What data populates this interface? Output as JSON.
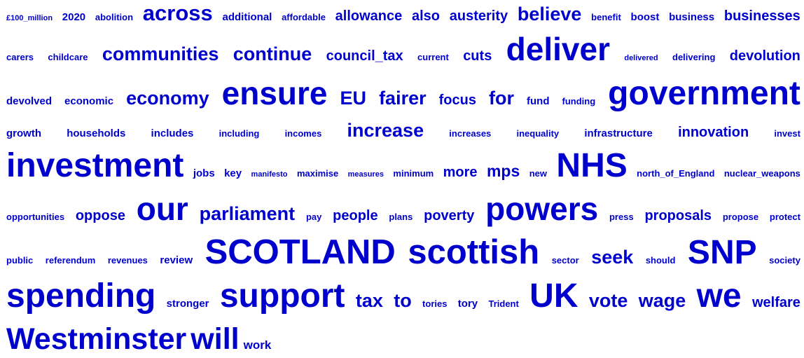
{
  "rows": [
    [
      {
        "text": "£100_million",
        "size": 1
      },
      {
        "text": "2020",
        "size": 3
      },
      {
        "text": "abolition",
        "size": 2
      },
      {
        "text": "across",
        "size": 8
      },
      {
        "text": "additional",
        "size": 3
      },
      {
        "text": "affordable",
        "size": 2
      },
      {
        "text": "allowance",
        "size": 5
      },
      {
        "text": "also",
        "size": 5
      },
      {
        "text": "austerity",
        "size": 5
      },
      {
        "text": "believe",
        "size": 7
      },
      {
        "text": "benefit",
        "size": 2
      },
      {
        "text": "boost",
        "size": 3
      },
      {
        "text": "business",
        "size": 3
      },
      {
        "text": "businesses",
        "size": 5
      }
    ],
    [
      {
        "text": "carers",
        "size": 2
      },
      {
        "text": "childcare",
        "size": 2
      },
      {
        "text": "communities",
        "size": 7
      },
      {
        "text": "continue",
        "size": 7
      },
      {
        "text": "council_tax",
        "size": 5
      },
      {
        "text": "current",
        "size": 2
      },
      {
        "text": "cuts",
        "size": 5
      },
      {
        "text": "deliver",
        "size": 11
      },
      {
        "text": "delivered",
        "size": 1
      },
      {
        "text": "delivering",
        "size": 2
      },
      {
        "text": "devolution",
        "size": 5
      }
    ],
    [
      {
        "text": "devolved",
        "size": 3
      },
      {
        "text": "economic",
        "size": 3
      },
      {
        "text": "economy",
        "size": 7
      },
      {
        "text": "ensure",
        "size": 11
      },
      {
        "text": "EU",
        "size": 7
      },
      {
        "text": "fairer",
        "size": 7
      },
      {
        "text": "focus",
        "size": 5
      },
      {
        "text": "for",
        "size": 7
      },
      {
        "text": "fund",
        "size": 3
      },
      {
        "text": "funding",
        "size": 2
      },
      {
        "text": "government",
        "size": 12
      }
    ],
    [
      {
        "text": "growth",
        "size": 3
      },
      {
        "text": "households",
        "size": 3
      },
      {
        "text": "includes",
        "size": 3
      },
      {
        "text": "including",
        "size": 2
      },
      {
        "text": "incomes",
        "size": 2
      },
      {
        "text": "increase",
        "size": 7
      },
      {
        "text": "increases",
        "size": 2
      },
      {
        "text": "inequality",
        "size": 2
      },
      {
        "text": "infrastructure",
        "size": 3
      },
      {
        "text": "innovation",
        "size": 5
      },
      {
        "text": "invest",
        "size": 2
      }
    ],
    [
      {
        "text": "investment",
        "size": 12
      },
      {
        "text": "jobs",
        "size": 3
      },
      {
        "text": "key",
        "size": 3
      },
      {
        "text": "manifesto",
        "size": 1
      },
      {
        "text": "maximise",
        "size": 2
      },
      {
        "text": "measures",
        "size": 1
      },
      {
        "text": "minimum",
        "size": 2
      },
      {
        "text": "more",
        "size": 5
      },
      {
        "text": "mps",
        "size": 6
      },
      {
        "text": "new",
        "size": 2
      },
      {
        "text": "NHS",
        "size": 12
      },
      {
        "text": "north_of_England",
        "size": 2
      },
      {
        "text": "nuclear_weapons",
        "size": 2
      }
    ],
    [
      {
        "text": "opportunities",
        "size": 2
      },
      {
        "text": "oppose",
        "size": 5
      },
      {
        "text": "our",
        "size": 11
      },
      {
        "text": "parliament",
        "size": 7
      },
      {
        "text": "pay",
        "size": 2
      },
      {
        "text": "people",
        "size": 5
      },
      {
        "text": "plans",
        "size": 2
      },
      {
        "text": "poverty",
        "size": 5
      },
      {
        "text": "powers",
        "size": 11
      },
      {
        "text": "press",
        "size": 2
      },
      {
        "text": "proposals",
        "size": 5
      },
      {
        "text": "propose",
        "size": 2
      },
      {
        "text": "protect",
        "size": 2
      }
    ],
    [
      {
        "text": "public",
        "size": 2
      },
      {
        "text": "referendum",
        "size": 2
      },
      {
        "text": "revenues",
        "size": 2
      },
      {
        "text": "review",
        "size": 3
      },
      {
        "text": "SCOTLAND",
        "size": 13
      },
      {
        "text": "scottish",
        "size": 13
      },
      {
        "text": "sector",
        "size": 2
      },
      {
        "text": "seek",
        "size": 7
      },
      {
        "text": "should",
        "size": 2
      },
      {
        "text": "SNP",
        "size": 12
      },
      {
        "text": "society",
        "size": 2
      }
    ],
    [
      {
        "text": "spending",
        "size": 12
      },
      {
        "text": "stronger",
        "size": 3
      },
      {
        "text": "support",
        "size": 12
      },
      {
        "text": "tax",
        "size": 7
      },
      {
        "text": "to",
        "size": 7
      },
      {
        "text": "tories",
        "size": 2
      },
      {
        "text": "tory",
        "size": 3
      },
      {
        "text": "Trident",
        "size": 2
      },
      {
        "text": "UK",
        "size": 12
      },
      {
        "text": "vote",
        "size": 7
      },
      {
        "text": "wage",
        "size": 7
      },
      {
        "text": "we",
        "size": 12
      },
      {
        "text": "welfare",
        "size": 5
      }
    ],
    [
      {
        "text": "Westminster",
        "size": 10
      },
      {
        "text": "will",
        "size": 10
      },
      {
        "text": "work",
        "size": 4
      }
    ]
  ],
  "colors": {
    "word": "#0000cc",
    "background": "#ffffff"
  }
}
